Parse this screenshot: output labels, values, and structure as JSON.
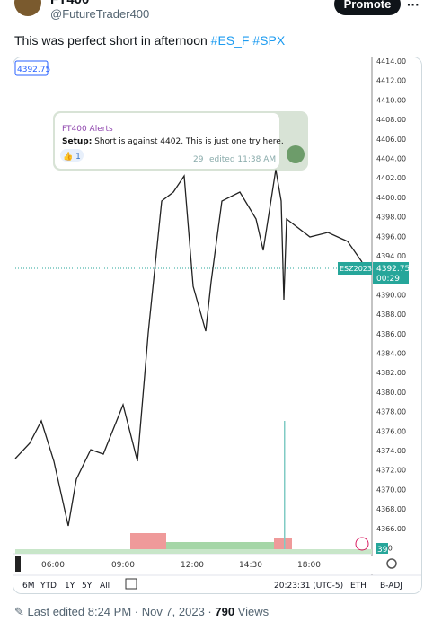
{
  "header": {
    "name": "FT400",
    "handle": "@FutureTrader400",
    "promote": "Promote",
    "more": "···"
  },
  "tweet": {
    "text": "This was perfect short in afternoon",
    "hashtags": [
      "#ES_F",
      "#SPX"
    ]
  },
  "chart": {
    "corner_price": "4392.75",
    "yaxis": [
      "4414.00",
      "4412.00",
      "4410.00",
      "4408.00",
      "4406.00",
      "4404.00",
      "4402.00",
      "4400.00",
      "4398.00",
      "4396.00",
      "4394.00",
      "4392.00",
      "4390.00",
      "4388.00",
      "4386.00",
      "4384.00",
      "4382.00",
      "4380.00",
      "4378.00",
      "4376.00",
      "4374.00",
      "4372.00",
      "4370.00",
      "4368.00",
      "4366.00",
      "4.00"
    ],
    "symbol": "ESZ2023",
    "last_price": "4392.75",
    "countdown": "00:29",
    "xaxis": [
      "06:00",
      "09:00",
      "12:00",
      "14:30",
      "18:00"
    ],
    "alert": {
      "title": "FT400 Alerts",
      "setup_label": "Setup:",
      "setup_text": "Short is against 4402. This is just one try here.",
      "reaction": "👍 1",
      "views": "29",
      "edited": "edited 11:38 AM"
    },
    "ranges": [
      "6M",
      "YTD",
      "1Y",
      "5Y",
      "All"
    ],
    "clock": "20:23:31 (UTC-5)",
    "session": "ETH",
    "adjust": "B-ADJ",
    "badge": "39"
  },
  "footer": {
    "edited": "Last edited 8:24 PM · Nov 7, 2023 · ",
    "views_count": "790",
    "views_label": " Views"
  }
}
